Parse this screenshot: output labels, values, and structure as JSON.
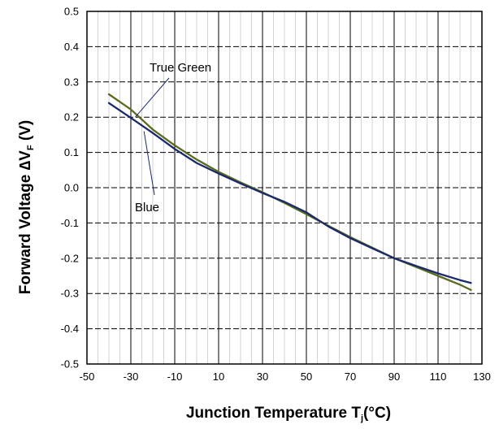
{
  "chart_data": {
    "type": "line",
    "title": "",
    "xlabel": "Junction Temperature T",
    "xlabel_sub": "j",
    "xlabel_suffix": "(°C)",
    "ylabel": "Forward Voltage ∆V",
    "ylabel_sub": "F",
    "ylabel_suffix": " (V)",
    "xlim": [
      -50,
      130
    ],
    "ylim": [
      -0.5,
      0.5
    ],
    "x_ticks": [
      -50,
      -30,
      -10,
      10,
      30,
      50,
      70,
      90,
      110,
      130
    ],
    "x_tick_labels": [
      "-50",
      "-30",
      "-10",
      "10",
      "30",
      "50",
      "70",
      "90",
      "110",
      "130"
    ],
    "y_ticks": [
      -0.5,
      -0.4,
      -0.3,
      -0.2,
      -0.1,
      0.0,
      0.1,
      0.2,
      0.3,
      0.4,
      0.5
    ],
    "y_tick_labels": [
      "-0.5",
      "-0.4",
      "-0.3",
      "-0.2",
      "-0.1",
      "0.0",
      "0.1",
      "0.2",
      "0.3",
      "0.4",
      "0.5"
    ],
    "grid": true,
    "series": [
      {
        "name": "True Green",
        "color": "#5a6b1e",
        "x": [
          -40,
          -30,
          -20,
          -10,
          0,
          10,
          20,
          30,
          40,
          50,
          60,
          70,
          80,
          90,
          100,
          110,
          120,
          125
        ],
        "y": [
          0.265,
          0.222,
          0.165,
          0.12,
          0.08,
          0.045,
          0.015,
          -0.013,
          -0.043,
          -0.075,
          -0.108,
          -0.14,
          -0.17,
          -0.2,
          -0.225,
          -0.25,
          -0.275,
          -0.29
        ]
      },
      {
        "name": "Blue",
        "color": "#1b2a6b",
        "x": [
          -40,
          -30,
          -20,
          -10,
          0,
          10,
          20,
          30,
          40,
          50,
          60,
          70,
          80,
          90,
          100,
          110,
          120,
          125
        ],
        "y": [
          0.24,
          0.198,
          0.155,
          0.11,
          0.07,
          0.04,
          0.012,
          -0.015,
          -0.04,
          -0.07,
          -0.11,
          -0.143,
          -0.172,
          -0.2,
          -0.222,
          -0.243,
          -0.262,
          -0.27
        ]
      }
    ],
    "annotations": [
      {
        "text": "True Green",
        "series": 0,
        "tip": [
          -28,
          0.2
        ]
      },
      {
        "text": "Blue",
        "series": 1,
        "tip": [
          -24,
          0.16
        ]
      }
    ]
  }
}
